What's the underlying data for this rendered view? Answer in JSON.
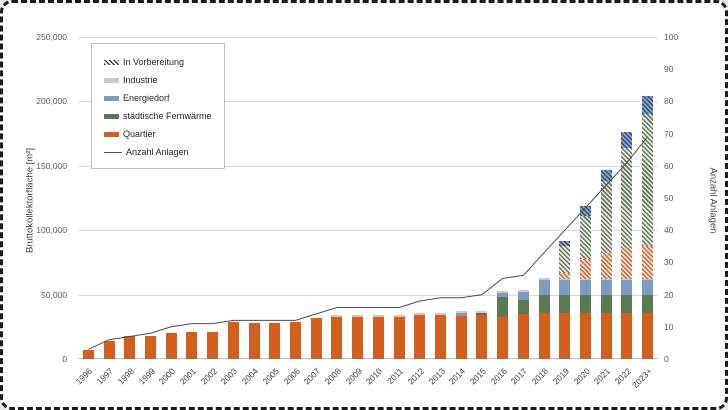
{
  "chart_data": {
    "type": "bar",
    "subtype": "stacked-bars-with-line",
    "categories": [
      "1996",
      "1997",
      "1998",
      "1999",
      "2000",
      "2001",
      "2002",
      "2003",
      "2004",
      "2005",
      "2006",
      "2007",
      "2008",
      "2009",
      "2010",
      "2011",
      "2012",
      "2013",
      "2014",
      "2015",
      "2016",
      "2017",
      "2018",
      "2019",
      "2020",
      "2021",
      "2022",
      "2023+"
    ],
    "series": [
      {
        "name": "Quartier",
        "color": "#d35f1e",
        "hatch": false,
        "values": [
          7000,
          14000,
          18000,
          18000,
          20000,
          21000,
          21000,
          28500,
          28000,
          28000,
          28500,
          32000,
          33000,
          33000,
          33000,
          33000,
          34000,
          34000,
          33500,
          34000,
          33000,
          35000,
          36000,
          36000,
          36000,
          36000,
          36000,
          36000
        ]
      },
      {
        "name": "städtische Fernwärme",
        "color": "#597a50",
        "hatch": false,
        "values": [
          0,
          0,
          0,
          0,
          0,
          0,
          0,
          0,
          0,
          0,
          0,
          0,
          0,
          0,
          0,
          0,
          0,
          0,
          0,
          2000,
          15000,
          11000,
          13500,
          14000,
          14000,
          14000,
          14000,
          14000
        ]
      },
      {
        "name": "Energiedorf",
        "color": "#7d9bc1",
        "hatch": false,
        "values": [
          0,
          0,
          0,
          0,
          0,
          0,
          0,
          0,
          0,
          0,
          0,
          0,
          0,
          0,
          0,
          0,
          0,
          0,
          2000,
          0,
          3000,
          6000,
          12000,
          11000,
          11000,
          11000,
          11000,
          11000
        ]
      },
      {
        "name": "Industrie",
        "color": "#c9c9c9",
        "hatch": false,
        "values": [
          0,
          0,
          0,
          0,
          0,
          0,
          0,
          0,
          0,
          0,
          0,
          0,
          1000,
          1000,
          1000,
          1000,
          1500,
          2000,
          1500,
          1500,
          1500,
          1500,
          1500,
          1500,
          1500,
          1500,
          1500,
          1500
        ]
      },
      {
        "name": "In Vorbereitung (Quartier)",
        "color": "#c96a3a",
        "color2": "#f3ddcf",
        "hatch": true,
        "values": [
          0,
          0,
          0,
          0,
          0,
          0,
          0,
          0,
          0,
          0,
          0,
          0,
          0,
          0,
          0,
          0,
          0,
          0,
          0,
          0,
          0,
          0,
          0,
          4500,
          15500,
          19500,
          23500,
          25000
        ]
      },
      {
        "name": "In Vorbereitung (städtische Fernwärme)",
        "color": "#66785f",
        "color2": "#e9ece5",
        "hatch": true,
        "values": [
          0,
          0,
          0,
          0,
          0,
          0,
          0,
          0,
          0,
          0,
          0,
          0,
          0,
          0,
          0,
          0,
          0,
          0,
          0,
          0,
          0,
          0,
          0,
          21000,
          33000,
          56000,
          78000,
          103000
        ]
      },
      {
        "name": "In Vorbereitung (Energiedorf)",
        "color": "#2f4d7e",
        "color2": "#8fa3c6",
        "hatch": true,
        "values": [
          0,
          0,
          0,
          0,
          0,
          0,
          0,
          0,
          0,
          0,
          0,
          0,
          0,
          0,
          0,
          0,
          0,
          0,
          0,
          0,
          0,
          0,
          0,
          4000,
          8000,
          9000,
          12000,
          14000
        ]
      }
    ],
    "line": {
      "name": "Anzahl Anlagen",
      "color": "#4d4d4d",
      "values": [
        3,
        6,
        7,
        8,
        10,
        11,
        11,
        12,
        12,
        12,
        12,
        14,
        16,
        16,
        16,
        16,
        18,
        19,
        19,
        20,
        25,
        26,
        33,
        40,
        47,
        54,
        61,
        69
      ]
    },
    "left_axis": {
      "title": "Bruttokollektorfläche  [m²]",
      "min": 0,
      "max": 250000,
      "step": 50000,
      "tick_labels": [
        "0",
        "50,000",
        "100,000",
        "150,000",
        "200,000",
        "250,000"
      ]
    },
    "right_axis": {
      "title": "Anzahl Anlagen",
      "min": 0,
      "max": 100,
      "step": 10,
      "tick_labels": [
        "0",
        "10",
        "20",
        "30",
        "40",
        "50",
        "60",
        "70",
        "80",
        "90",
        "100"
      ]
    },
    "legend": [
      {
        "label": "In Vorbereitung",
        "swatch": "hatch",
        "color": "#3a3a3a",
        "color2": "#ffffff"
      },
      {
        "label": "Industrie",
        "swatch": "solid",
        "color": "#c9c9c9"
      },
      {
        "label": "Energiedorf",
        "swatch": "solid",
        "color": "#7d9bc1"
      },
      {
        "label": "städtische Fernwärme",
        "swatch": "solid",
        "color": "#597a50"
      },
      {
        "label": "Quartier",
        "swatch": "solid",
        "color": "#d35f1e"
      },
      {
        "label": "Anzahl Anlagen",
        "swatch": "line",
        "color": "#4d4d4d"
      }
    ],
    "grid": {
      "color": "#d9d9d9",
      "on": true
    },
    "legend_position": "top-left-inside"
  }
}
